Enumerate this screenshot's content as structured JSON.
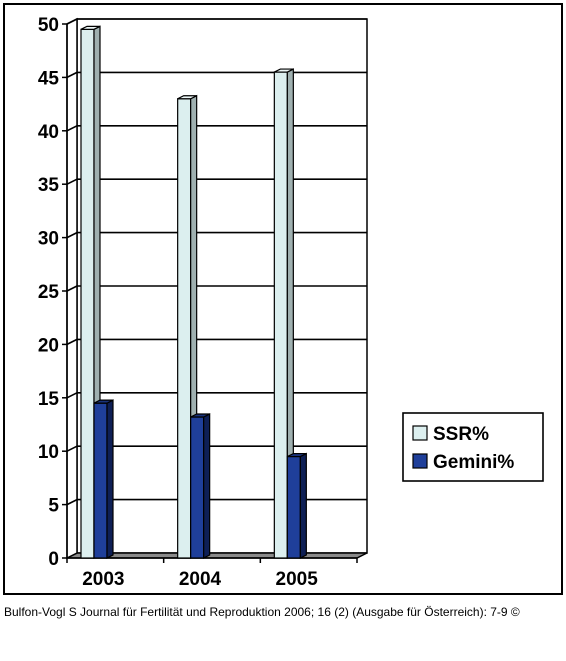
{
  "chart_data": {
    "type": "bar",
    "categories": [
      "2003",
      "2004",
      "2005"
    ],
    "series": [
      {
        "name": "SSR%",
        "values": [
          49.5,
          43.0,
          45.5
        ],
        "color": "#dcefef"
      },
      {
        "name": "Gemini%",
        "values": [
          14.5,
          13.2,
          9.5
        ],
        "color": "#1f3f9a"
      }
    ],
    "ylim": [
      0,
      50
    ],
    "yticks": [
      "0",
      "5",
      "10",
      "15",
      "20",
      "25",
      "30",
      "35",
      "40",
      "45",
      "50"
    ],
    "grid": true,
    "legend_position": "right",
    "style": "3d"
  },
  "caption": "Bulfon-Vogl S Journal für Fertilität und Reproduktion 2006; 16 (2) (Ausgabe für Österreich): 7-9 ©"
}
